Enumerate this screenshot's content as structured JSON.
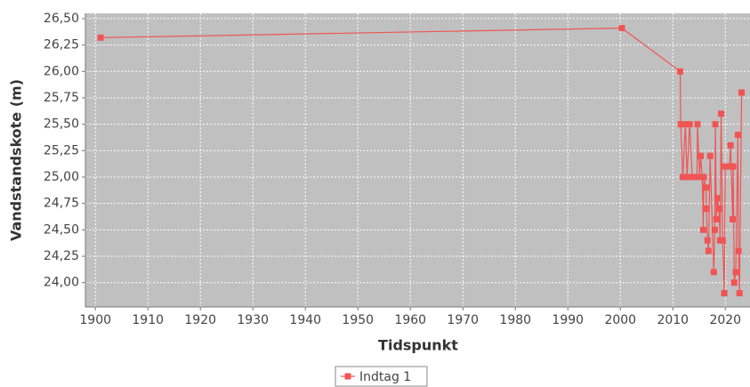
{
  "chart_data": {
    "type": "line",
    "xlabel": "Tidspunkt",
    "ylabel": "Vandstandskote (m)",
    "x": [
      1901,
      2000.3,
      2011.4,
      2011.5,
      2011.9,
      2012.4,
      2012.7,
      2013.2,
      2013.7,
      2014.6,
      2014.7,
      2015.1,
      2015.3,
      2015.6,
      2015.8,
      2015.9,
      2016.3,
      2016.4,
      2016.6,
      2016.8,
      2017.1,
      2017.8,
      2018.0,
      2018.1,
      2018.3,
      2018.5,
      2018.8,
      2019.0,
      2019.2,
      2019.5,
      2019.8,
      2020.0,
      2020.8,
      2021.0,
      2021.4,
      2021.5,
      2021.7,
      2022.0,
      2022.4,
      2022.5,
      2022.7,
      2023.1
    ],
    "series": [
      {
        "name": "Indtag 1",
        "color": "#f05454",
        "values": [
          26.32,
          26.41,
          26.0,
          25.5,
          25.0,
          25.5,
          25.0,
          25.5,
          25.0,
          25.0,
          25.5,
          25.0,
          25.2,
          25.0,
          24.5,
          25.0,
          24.9,
          24.7,
          24.4,
          24.3,
          25.2,
          24.1,
          24.5,
          25.5,
          24.6,
          24.8,
          24.7,
          24.4,
          25.6,
          24.4,
          23.9,
          25.1,
          25.1,
          25.3,
          24.6,
          25.1,
          24.0,
          24.1,
          25.4,
          24.3,
          23.9,
          25.8
        ]
      }
    ],
    "xlim": [
      1898.1,
      2024.7
    ],
    "xticks": [
      1900,
      1910,
      1920,
      1930,
      1940,
      1950,
      1960,
      1970,
      1980,
      1990,
      2000,
      2010,
      2020
    ],
    "ylim": [
      23.77,
      26.55
    ],
    "yticks": [
      {
        "value": 24.0,
        "label": "24,00"
      },
      {
        "value": 24.25,
        "label": "24,25"
      },
      {
        "value": 24.5,
        "label": "24,50"
      },
      {
        "value": 24.75,
        "label": "24,75"
      },
      {
        "value": 25.0,
        "label": "25,00"
      },
      {
        "value": 25.25,
        "label": "25,25"
      },
      {
        "value": 25.5,
        "label": "25,50"
      },
      {
        "value": 25.75,
        "label": "25,75"
      },
      {
        "value": 26.0,
        "label": "26,00"
      },
      {
        "value": 26.25,
        "label": "26,25"
      },
      {
        "value": 26.5,
        "label": "26,50"
      }
    ],
    "grid": true,
    "legend": "bottom"
  }
}
